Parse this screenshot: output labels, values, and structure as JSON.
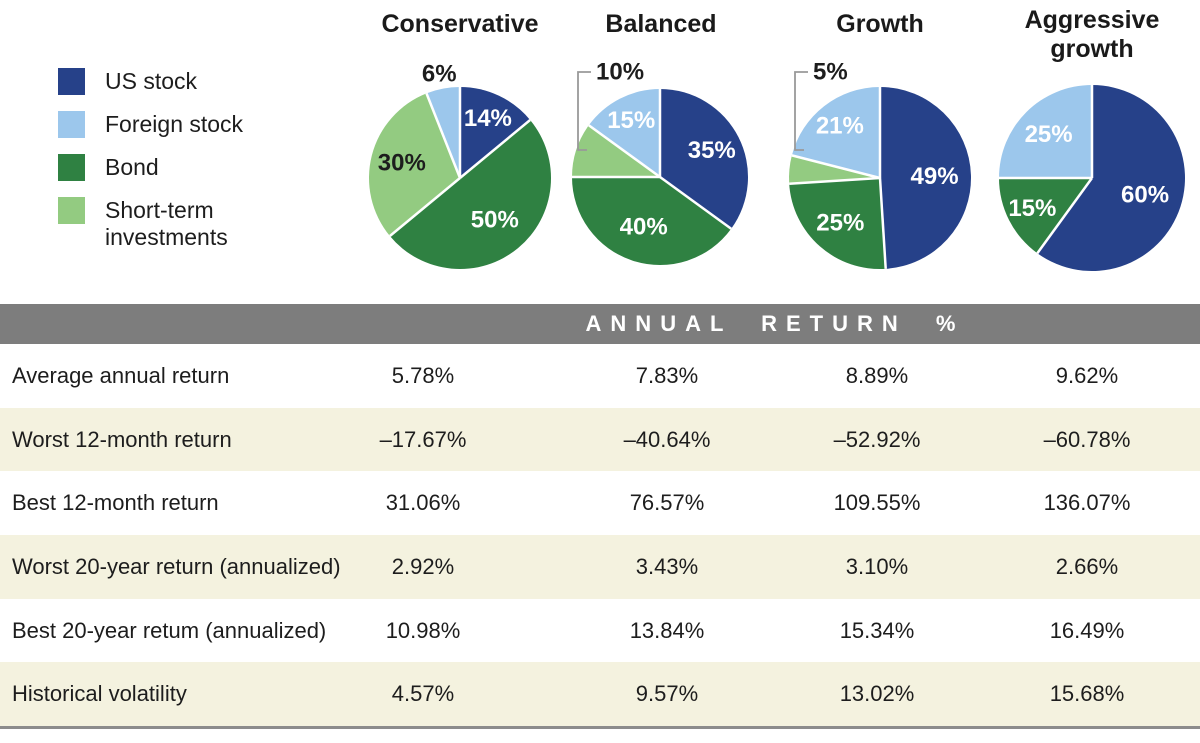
{
  "colors": {
    "us_stock": "#264189",
    "foreign_stock": "#9cc7ec",
    "bond": "#2f8142",
    "short_term": "#93cb81",
    "header_band": "#7d7d7d",
    "row_alt": "#f4f2df",
    "bottom_border": "#8c8c8c",
    "dark_text": "#1d1d1d",
    "white_text": "#ffffff",
    "leader_line": "#999999"
  },
  "legend": {
    "items": [
      {
        "label": "US stock",
        "color": "us_stock"
      },
      {
        "label": "Foreign stock",
        "color": "foreign_stock"
      },
      {
        "label": "Bond",
        "color": "bond"
      },
      {
        "label": "Short-term investments",
        "color": "short_term"
      }
    ]
  },
  "chart_data": [
    {
      "type": "pie",
      "title": "Conservative",
      "slices": [
        {
          "name": "US stock",
          "value": 14,
          "label": "14%",
          "color": "us_stock",
          "label_style": "inside-white"
        },
        {
          "name": "Bond",
          "value": 50,
          "label": "50%",
          "color": "bond",
          "label_style": "inside-white"
        },
        {
          "name": "Short-term investments",
          "value": 30,
          "label": "30%",
          "color": "short_term",
          "label_style": "inside-dark"
        },
        {
          "name": "Foreign stock",
          "value": 6,
          "label": "6%",
          "color": "foreign_stock",
          "label_style": "outside-above"
        }
      ]
    },
    {
      "type": "pie",
      "title": "Balanced",
      "slices": [
        {
          "name": "US stock",
          "value": 35,
          "label": "35%",
          "color": "us_stock",
          "label_style": "inside-white"
        },
        {
          "name": "Bond",
          "value": 40,
          "label": "40%",
          "color": "bond",
          "label_style": "inside-white"
        },
        {
          "name": "Short-term investments",
          "value": 10,
          "label": "10%",
          "color": "short_term",
          "label_style": "outside-bracket"
        },
        {
          "name": "Foreign stock",
          "value": 15,
          "label": "15%",
          "color": "foreign_stock",
          "label_style": "inside-white"
        }
      ]
    },
    {
      "type": "pie",
      "title": "Growth",
      "slices": [
        {
          "name": "US stock",
          "value": 49,
          "label": "49%",
          "color": "us_stock",
          "label_style": "inside-white"
        },
        {
          "name": "Bond",
          "value": 25,
          "label": "25%",
          "color": "bond",
          "label_style": "inside-white"
        },
        {
          "name": "Short-term investments",
          "value": 5,
          "label": "5%",
          "color": "short_term",
          "label_style": "outside-bracket"
        },
        {
          "name": "Foreign stock",
          "value": 21,
          "label": "21%",
          "color": "foreign_stock",
          "label_style": "inside-white"
        }
      ]
    },
    {
      "type": "pie",
      "title": "Aggressive growth",
      "slices": [
        {
          "name": "US stock",
          "value": 60,
          "label": "60%",
          "color": "us_stock",
          "label_style": "inside-white"
        },
        {
          "name": "Bond",
          "value": 15,
          "label": "15%",
          "color": "bond",
          "label_style": "inside-white"
        },
        {
          "name": "Foreign stock",
          "value": 25,
          "label": "25%",
          "color": "foreign_stock",
          "label_style": "inside-white"
        }
      ]
    },
    {
      "type": "table",
      "title": "ANNUAL RETURN %",
      "columns": [
        "Conservative",
        "Balanced",
        "Growth",
        "Aggressive growth"
      ],
      "rows": [
        {
          "label": "Average annual return",
          "values": [
            "5.78%",
            "7.83%",
            "8.89%",
            "9.62%"
          ]
        },
        {
          "label": "Worst 12-month return",
          "values": [
            "–17.67%",
            "–40.64%",
            "–52.92%",
            "–60.78%"
          ]
        },
        {
          "label": "Best 12-month return",
          "values": [
            "31.06%",
            "76.57%",
            "109.55%",
            "136.07%"
          ]
        },
        {
          "label": "Worst 20-year return (annualized)",
          "values": [
            "2.92%",
            "3.43%",
            "3.10%",
            "2.66%"
          ]
        },
        {
          "label": "Best 20-year retum (annualized)",
          "values": [
            "10.98%",
            "13.84%",
            "15.34%",
            "16.49%"
          ]
        },
        {
          "label": "Historical volatility",
          "values": [
            "4.57%",
            "9.57%",
            "13.02%",
            "15.68%"
          ]
        }
      ]
    }
  ]
}
